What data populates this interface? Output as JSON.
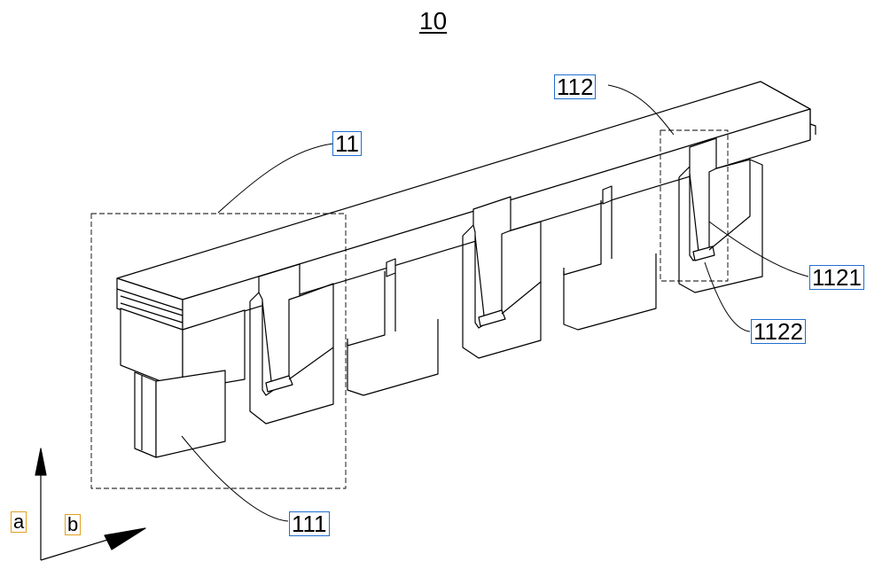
{
  "figure_number": "10",
  "labels": {
    "l11": "11",
    "l111": "111",
    "l112": "112",
    "l1121": "1121",
    "l1122": "1122"
  },
  "axes": {
    "a": "a",
    "b": "b"
  },
  "colors": {
    "line": "#000000",
    "label_border": "#1f6fd0",
    "axis_label_border": "#e0a020",
    "background": "#ffffff"
  }
}
